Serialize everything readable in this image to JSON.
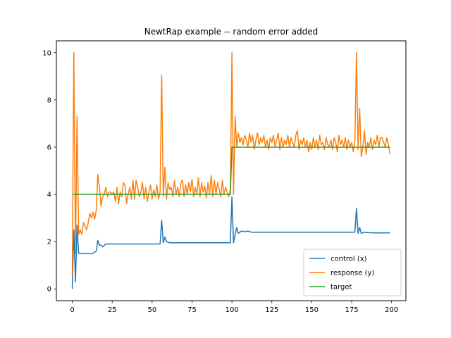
{
  "chart_data": {
    "type": "line",
    "title": "NewtRap example -- random error added",
    "xlabel": "",
    "ylabel": "",
    "xlim": [
      -9.95,
      208.95
    ],
    "ylim": [
      -0.5,
      10.5
    ],
    "xticks": [
      0,
      25,
      50,
      75,
      100,
      125,
      150,
      175,
      200
    ],
    "yticks": [
      0,
      2,
      4,
      6,
      8,
      10
    ],
    "grid": false,
    "legend_position": "lower-right",
    "series": [
      {
        "name": "control (x)",
        "color": "#1f77b4",
        "points": [
          [
            0,
            0
          ],
          [
            1,
            2.5
          ],
          [
            2,
            0.3
          ],
          [
            3,
            2.7
          ],
          [
            4,
            1.5
          ],
          [
            6,
            1.5
          ],
          [
            8,
            1.5
          ],
          [
            10,
            1.5
          ],
          [
            12,
            1.48
          ],
          [
            14,
            1.55
          ],
          [
            15,
            1.6
          ],
          [
            16,
            2.05
          ],
          [
            17,
            1.85
          ],
          [
            18,
            1.85
          ],
          [
            19,
            1.78
          ],
          [
            21,
            1.9
          ],
          [
            23,
            1.9
          ],
          [
            25,
            1.9
          ],
          [
            30,
            1.9
          ],
          [
            40,
            1.9
          ],
          [
            50,
            1.9
          ],
          [
            55,
            1.9
          ],
          [
            56,
            2.9
          ],
          [
            57,
            1.95
          ],
          [
            58,
            2.2
          ],
          [
            59,
            2.0
          ],
          [
            61,
            1.95
          ],
          [
            65,
            1.95
          ],
          [
            70,
            1.95
          ],
          [
            80,
            1.95
          ],
          [
            90,
            1.95
          ],
          [
            99,
            1.95
          ],
          [
            100,
            3.9
          ],
          [
            101,
            1.95
          ],
          [
            102,
            2.3
          ],
          [
            103,
            2.6
          ],
          [
            104,
            2.35
          ],
          [
            106,
            2.45
          ],
          [
            108,
            2.42
          ],
          [
            110,
            2.45
          ],
          [
            112,
            2.4
          ],
          [
            115,
            2.4
          ],
          [
            120,
            2.4
          ],
          [
            130,
            2.4
          ],
          [
            140,
            2.4
          ],
          [
            150,
            2.4
          ],
          [
            160,
            2.4
          ],
          [
            170,
            2.4
          ],
          [
            177,
            2.4
          ],
          [
            178,
            3.42
          ],
          [
            179,
            2.35
          ],
          [
            180,
            2.6
          ],
          [
            181,
            2.35
          ],
          [
            183,
            2.4
          ],
          [
            185,
            2.38
          ],
          [
            190,
            2.37
          ],
          [
            199,
            2.37
          ]
        ]
      },
      {
        "name": "response (y)",
        "color": "#ff7f0e",
        "points": [
          [
            0,
            0.6
          ],
          [
            1,
            10.0
          ],
          [
            2,
            1.5
          ],
          [
            3,
            7.3
          ],
          [
            4,
            2.3
          ],
          [
            5,
            2.5
          ],
          [
            6,
            2.3
          ],
          [
            7,
            2.8
          ],
          [
            8,
            2.65
          ],
          [
            9,
            2.5
          ],
          [
            10,
            2.8
          ],
          [
            11,
            3.2
          ],
          [
            12,
            3.0
          ],
          [
            13,
            3.25
          ],
          [
            14,
            2.95
          ],
          [
            15,
            3.3
          ],
          [
            16,
            4.85
          ],
          [
            17,
            4.3
          ],
          [
            18,
            3.5
          ],
          [
            19,
            3.9
          ],
          [
            20,
            4.0
          ],
          [
            21,
            4.3
          ],
          [
            22,
            3.9
          ],
          [
            23,
            4.1
          ],
          [
            24,
            4.1
          ],
          [
            25,
            4.0
          ],
          [
            26,
            4.1
          ],
          [
            27,
            3.7
          ],
          [
            28,
            4.3
          ],
          [
            29,
            3.6
          ],
          [
            30,
            4.1
          ],
          [
            31,
            3.9
          ],
          [
            32,
            4.5
          ],
          [
            33,
            4.4
          ],
          [
            34,
            3.6
          ],
          [
            35,
            4.0
          ],
          [
            36,
            4.3
          ],
          [
            37,
            3.8
          ],
          [
            38,
            4.6
          ],
          [
            39,
            3.8
          ],
          [
            40,
            4.6
          ],
          [
            41,
            4.3
          ],
          [
            42,
            3.9
          ],
          [
            43,
            4.1
          ],
          [
            44,
            4.5
          ],
          [
            45,
            3.8
          ],
          [
            46,
            4.3
          ],
          [
            47,
            3.7
          ],
          [
            48,
            4.1
          ],
          [
            49,
            4.4
          ],
          [
            50,
            3.8
          ],
          [
            51,
            4.2
          ],
          [
            52,
            3.9
          ],
          [
            53,
            4.4
          ],
          [
            54,
            3.8
          ],
          [
            55,
            4.1
          ],
          [
            56,
            9.05
          ],
          [
            57,
            3.9
          ],
          [
            58,
            5.15
          ],
          [
            59,
            3.8
          ],
          [
            60,
            4.5
          ],
          [
            61,
            4.2
          ],
          [
            62,
            4.3
          ],
          [
            63,
            3.9
          ],
          [
            64,
            4.6
          ],
          [
            65,
            4.0
          ],
          [
            66,
            4.3
          ],
          [
            67,
            3.9
          ],
          [
            68,
            4.5
          ],
          [
            69,
            4.6
          ],
          [
            70,
            3.9
          ],
          [
            71,
            4.4
          ],
          [
            72,
            4.0
          ],
          [
            73,
            4.5
          ],
          [
            74,
            4.1
          ],
          [
            75,
            4.65
          ],
          [
            76,
            3.9
          ],
          [
            77,
            4.3
          ],
          [
            78,
            4.0
          ],
          [
            79,
            4.7
          ],
          [
            80,
            3.9
          ],
          [
            81,
            4.5
          ],
          [
            82,
            4.1
          ],
          [
            83,
            4.35
          ],
          [
            84,
            3.85
          ],
          [
            85,
            4.5
          ],
          [
            86,
            4.0
          ],
          [
            87,
            4.8
          ],
          [
            88,
            3.9
          ],
          [
            89,
            4.6
          ],
          [
            90,
            4.0
          ],
          [
            91,
            4.5
          ],
          [
            92,
            4.2
          ],
          [
            93,
            3.9
          ],
          [
            94,
            4.6
          ],
          [
            95,
            4.0
          ],
          [
            96,
            4.3
          ],
          [
            97,
            4.1
          ],
          [
            98,
            3.9
          ],
          [
            99,
            4.2
          ],
          [
            100,
            10.0
          ],
          [
            101,
            4.0
          ],
          [
            102,
            7.3
          ],
          [
            103,
            6.0
          ],
          [
            104,
            6.6
          ],
          [
            105,
            6.2
          ],
          [
            106,
            6.4
          ],
          [
            107,
            6.1
          ],
          [
            108,
            6.5
          ],
          [
            109,
            6.3
          ],
          [
            110,
            6.0
          ],
          [
            111,
            6.6
          ],
          [
            112,
            6.2
          ],
          [
            113,
            6.5
          ],
          [
            114,
            5.9
          ],
          [
            115,
            6.3
          ],
          [
            116,
            6.6
          ],
          [
            117,
            6.1
          ],
          [
            118,
            6.4
          ],
          [
            119,
            6.2
          ],
          [
            120,
            6.5
          ],
          [
            121,
            6.0
          ],
          [
            122,
            6.3
          ],
          [
            123,
            5.9
          ],
          [
            124,
            6.4
          ],
          [
            125,
            6.2
          ],
          [
            126,
            6.5
          ],
          [
            127,
            6.0
          ],
          [
            128,
            6.3
          ],
          [
            129,
            6.6
          ],
          [
            130,
            5.9
          ],
          [
            131,
            6.4
          ],
          [
            132,
            6.0
          ],
          [
            133,
            6.3
          ],
          [
            134,
            6.1
          ],
          [
            135,
            6.5
          ],
          [
            136,
            6.0
          ],
          [
            137,
            6.4
          ],
          [
            138,
            6.2
          ],
          [
            139,
            6.0
          ],
          [
            140,
            6.5
          ],
          [
            141,
            6.7
          ],
          [
            142,
            5.9
          ],
          [
            143,
            6.3
          ],
          [
            144,
            6.1
          ],
          [
            145,
            6.4
          ],
          [
            146,
            6.0
          ],
          [
            147,
            6.3
          ],
          [
            148,
            5.8
          ],
          [
            149,
            6.2
          ],
          [
            150,
            5.9
          ],
          [
            151,
            6.4
          ],
          [
            152,
            6.0
          ],
          [
            153,
            6.3
          ],
          [
            154,
            5.9
          ],
          [
            155,
            6.5
          ],
          [
            156,
            6.1
          ],
          [
            157,
            6.2
          ],
          [
            158,
            5.9
          ],
          [
            159,
            6.4
          ],
          [
            160,
            6.1
          ],
          [
            161,
            6.0
          ],
          [
            162,
            6.3
          ],
          [
            163,
            5.9
          ],
          [
            164,
            6.4
          ],
          [
            165,
            6.2
          ],
          [
            166,
            5.8
          ],
          [
            167,
            6.5
          ],
          [
            168,
            6.1
          ],
          [
            169,
            6.3
          ],
          [
            170,
            6.0
          ],
          [
            171,
            6.4
          ],
          [
            172,
            5.9
          ],
          [
            173,
            6.3
          ],
          [
            174,
            6.0
          ],
          [
            175,
            6.2
          ],
          [
            176,
            5.8
          ],
          [
            177,
            6.3
          ],
          [
            178,
            10.0
          ],
          [
            179,
            5.9
          ],
          [
            180,
            7.65
          ],
          [
            181,
            5.6
          ],
          [
            182,
            6.0
          ],
          [
            183,
            6.7
          ],
          [
            184,
            5.7
          ],
          [
            185,
            6.2
          ],
          [
            186,
            6.0
          ],
          [
            187,
            6.4
          ],
          [
            188,
            5.9
          ],
          [
            189,
            6.3
          ],
          [
            190,
            6.1
          ],
          [
            191,
            6.5
          ],
          [
            192,
            6.0
          ],
          [
            193,
            6.4
          ],
          [
            194,
            6.4
          ],
          [
            195,
            6.2
          ],
          [
            196,
            6.0
          ],
          [
            197,
            6.4
          ],
          [
            198,
            6.1
          ],
          [
            199,
            5.7
          ]
        ]
      },
      {
        "name": "target",
        "color": "#2ca02c",
        "points": [
          [
            0,
            4
          ],
          [
            99,
            4
          ],
          [
            100,
            6
          ],
          [
            199,
            6
          ]
        ]
      }
    ]
  }
}
